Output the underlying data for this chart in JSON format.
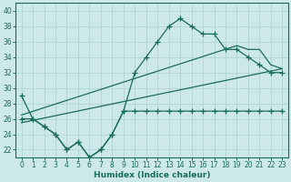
{
  "title": "",
  "xlabel": "Humidex (Indice chaleur)",
  "bg_color": "#cce8eb",
  "grid_color": "#b0d4d8",
  "line_color": "#1a6b5a",
  "xlim": [
    -0.5,
    23.5
  ],
  "ylim": [
    21.0,
    41.0
  ],
  "xticks": [
    0,
    1,
    2,
    3,
    4,
    5,
    6,
    7,
    8,
    9,
    10,
    11,
    12,
    13,
    14,
    15,
    16,
    17,
    18,
    19,
    20,
    21,
    22,
    23
  ],
  "yticks": [
    22,
    24,
    26,
    28,
    30,
    32,
    34,
    36,
    38,
    40
  ],
  "line1_x": [
    0,
    1,
    2,
    3,
    4,
    5,
    6,
    7,
    8,
    9,
    10,
    11,
    12,
    13,
    14,
    15,
    16,
    17,
    18,
    19,
    20,
    21,
    22,
    23
  ],
  "line1_y": [
    29,
    26,
    25,
    24,
    22,
    23,
    21,
    22,
    24,
    27,
    32,
    34,
    36,
    38,
    39,
    38,
    37,
    37,
    35,
    35,
    34,
    33,
    32,
    32
  ],
  "line2_x": [
    0,
    1,
    2,
    3,
    4,
    5,
    6,
    7,
    8,
    9,
    10,
    11,
    12,
    13,
    14,
    15,
    16,
    17,
    18,
    19,
    20,
    21,
    22,
    23
  ],
  "line2_y": [
    26,
    26,
    25,
    24,
    22,
    23,
    21,
    22,
    24,
    27,
    27,
    27,
    27,
    27,
    27,
    27,
    27,
    27,
    27,
    27,
    27,
    27,
    27,
    27
  ],
  "line3_x": [
    0,
    23
  ],
  "line3_y": [
    25.5,
    32.5
  ],
  "line4_x": [
    0,
    19,
    20,
    21,
    22,
    23
  ],
  "line4_y": [
    26.5,
    35.5,
    35.0,
    35.0,
    33.0,
    32.5
  ]
}
